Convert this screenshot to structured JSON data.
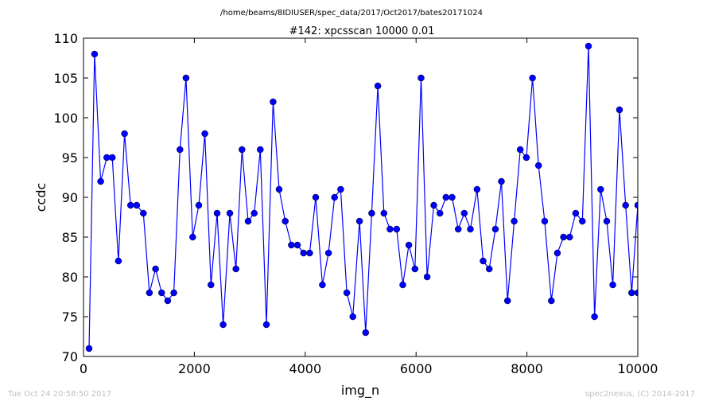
{
  "chart_data": {
    "type": "line",
    "suptitle": "/home/beams/8IDIUSER/spec_data/2017/Oct2017/bates20171024",
    "title": "#142: xpcsscan 10000 0.01",
    "xlabel": "img_n",
    "ylabel": "ccdc",
    "xlim": [
      0,
      10000
    ],
    "ylim": [
      70,
      110
    ],
    "xticks": [
      "0",
      "2000",
      "4000",
      "6000",
      "8000",
      "10000"
    ],
    "yticks": [
      "70",
      "75",
      "80",
      "85",
      "90",
      "95",
      "100",
      "105",
      "110"
    ],
    "grid": false,
    "legend": "none",
    "color": "#0000ff",
    "marker": "circle",
    "series": [
      {
        "x": [
          100,
          200,
          310,
          420,
          520,
          630,
          740,
          850,
          960,
          1080,
          1190,
          1300,
          1410,
          1520,
          1630,
          1740,
          1850,
          1970,
          2080,
          2190,
          2300,
          2410,
          2520,
          2640,
          2750,
          2860,
          2970,
          3080,
          3190,
          3300,
          3420,
          3530,
          3640,
          3750,
          3860,
          3970,
          4080,
          4190,
          4310,
          4420,
          4530,
          4640,
          4750,
          4860,
          4980,
          5090,
          5200,
          5310,
          5420,
          5530,
          5650,
          5760,
          5870,
          5980,
          6090,
          6200,
          6320,
          6430,
          6540,
          6650,
          6760,
          6870,
          6980,
          7100,
          7210,
          7320,
          7430,
          7540,
          7650,
          7770,
          7880,
          7990,
          8100,
          8210,
          8320,
          8440,
          8550,
          8660,
          8770,
          8880,
          9000,
          9110,
          9220,
          9330,
          9440,
          9550,
          9670,
          9780,
          9890,
          10000,
          10000
        ],
        "y": [
          71,
          108,
          92,
          95,
          95,
          82,
          98,
          89,
          89,
          88,
          78,
          81,
          78,
          77,
          78,
          96,
          105,
          85,
          89,
          98,
          79,
          88,
          74,
          88,
          81,
          96,
          87,
          88,
          96,
          74,
          102,
          91,
          87,
          84,
          84,
          83,
          83,
          90,
          79,
          83,
          90,
          91,
          78,
          75,
          87,
          73,
          88,
          104,
          88,
          86,
          86,
          79,
          84,
          81,
          105,
          80,
          89,
          88,
          90,
          90,
          86,
          88,
          86,
          91,
          82,
          81,
          86,
          92,
          77,
          87,
          96,
          95,
          105,
          94,
          87,
          77,
          83,
          85,
          85,
          88,
          87,
          109,
          75,
          91,
          87,
          79,
          101,
          89,
          78,
          89,
          78
        ]
      }
    ]
  },
  "footer": {
    "timestamp": "Tue Oct 24 20:58:50 2017",
    "credit": "spec2nexus, (C) 2014-2017"
  }
}
